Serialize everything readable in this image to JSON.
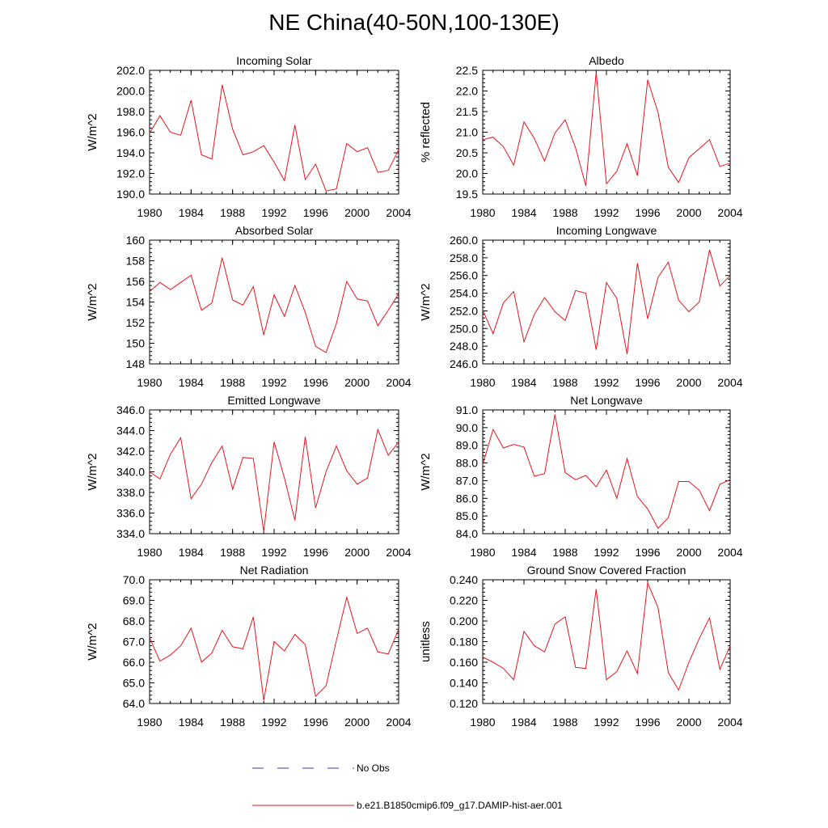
{
  "title": "NE China(40-50N,100-130E)",
  "legend": [
    {
      "label": "No Obs",
      "color": "#3a3ac8",
      "style": "dashed"
    },
    {
      "label": "b.e21.B1850cmip6.f09_g17.DAMIP-hist-aer.001",
      "color": "#e8141e",
      "style": "solid"
    }
  ],
  "chart_data": [
    {
      "type": "line",
      "title": "Incoming Solar",
      "xlabel": "",
      "ylabel": "W/m^2",
      "xlim": [
        1980,
        2004
      ],
      "ylim": [
        190,
        202
      ],
      "xticks": [
        "1980",
        "1984",
        "1988",
        "1992",
        "1996",
        "2000",
        "2004"
      ],
      "yticks": [
        "190.0",
        "192.0",
        "194.0",
        "196.0",
        "198.0",
        "200.0",
        "202.0"
      ],
      "x": [
        1980,
        1981,
        1982,
        1983,
        1984,
        1985,
        1986,
        1987,
        1988,
        1989,
        1990,
        1991,
        1992,
        1993,
        1994,
        1995,
        1996,
        1997,
        1998,
        1999,
        2000,
        2001,
        2002,
        2003,
        2004
      ],
      "series": [
        {
          "name": "b.e21.B1850cmip6.f09_g17.DAMIP-hist-aer.001",
          "values": [
            195.9,
            197.6,
            196.0,
            195.7,
            199.1,
            193.8,
            193.4,
            200.6,
            196.3,
            193.8,
            194.1,
            194.7,
            193.1,
            191.3,
            196.7,
            191.4,
            192.9,
            190.3,
            190.5,
            194.9,
            194.1,
            194.5,
            192.1,
            192.3,
            194.3
          ]
        }
      ]
    },
    {
      "type": "line",
      "title": "Albedo",
      "xlabel": "",
      "ylabel": "% reflected",
      "xlim": [
        1980,
        2004
      ],
      "ylim": [
        19.5,
        22.5
      ],
      "xticks": [
        "1980",
        "1984",
        "1988",
        "1992",
        "1996",
        "2000",
        "2004"
      ],
      "yticks": [
        "19.5",
        "20.0",
        "20.5",
        "21.0",
        "21.5",
        "22.0",
        "22.5"
      ],
      "x": [
        1980,
        1981,
        1982,
        1983,
        1984,
        1985,
        1986,
        1987,
        1988,
        1989,
        1990,
        1991,
        1992,
        1993,
        1994,
        1995,
        1996,
        1997,
        1998,
        1999,
        2000,
        2001,
        2002,
        2003,
        2004
      ],
      "series": [
        {
          "name": "b.e21.B1850cmip6.f09_g17.DAMIP-hist-aer.001",
          "values": [
            20.82,
            20.88,
            20.65,
            20.2,
            21.25,
            20.85,
            20.3,
            20.98,
            21.3,
            20.62,
            19.7,
            22.45,
            19.75,
            20.05,
            20.72,
            19.95,
            22.27,
            21.48,
            20.15,
            19.78,
            20.38,
            20.6,
            20.82,
            20.17,
            20.25
          ]
        }
      ]
    },
    {
      "type": "line",
      "title": "Absorbed Solar",
      "xlabel": "",
      "ylabel": "W/m^2",
      "xlim": [
        1980,
        2004
      ],
      "ylim": [
        148,
        160
      ],
      "xticks": [
        "1980",
        "1984",
        "1988",
        "1992",
        "1996",
        "2000",
        "2004"
      ],
      "yticks": [
        "148",
        "150",
        "152",
        "154",
        "156",
        "158",
        "160"
      ],
      "x": [
        1980,
        1981,
        1982,
        1983,
        1984,
        1985,
        1986,
        1987,
        1988,
        1989,
        1990,
        1991,
        1992,
        1993,
        1994,
        1995,
        1996,
        1997,
        1998,
        1999,
        2000,
        2001,
        2002,
        2003,
        2004
      ],
      "series": [
        {
          "name": "b.e21.B1850cmip6.f09_g17.DAMIP-hist-aer.001",
          "values": [
            155.0,
            155.9,
            155.2,
            155.9,
            156.6,
            153.2,
            153.9,
            158.3,
            154.2,
            153.7,
            155.5,
            150.8,
            154.7,
            152.6,
            155.6,
            153.0,
            149.7,
            149.1,
            151.9,
            156.0,
            154.3,
            154.1,
            151.7,
            153.2,
            154.8
          ]
        }
      ]
    },
    {
      "type": "line",
      "title": "Incoming Longwave",
      "xlabel": "",
      "ylabel": "W/m^2",
      "xlim": [
        1980,
        2004
      ],
      "ylim": [
        246,
        260
      ],
      "xticks": [
        "1980",
        "1984",
        "1988",
        "1992",
        "1996",
        "2000",
        "2004"
      ],
      "yticks": [
        "246.0",
        "248.0",
        "250.0",
        "252.0",
        "254.0",
        "256.0",
        "258.0",
        "260.0"
      ],
      "x": [
        1980,
        1981,
        1982,
        1983,
        1984,
        1985,
        1986,
        1987,
        1988,
        1989,
        1990,
        1991,
        1992,
        1993,
        1994,
        1995,
        1996,
        1997,
        1998,
        1999,
        2000,
        2001,
        2002,
        2003,
        2004
      ],
      "series": [
        {
          "name": "b.e21.B1850cmip6.f09_g17.DAMIP-hist-aer.001",
          "values": [
            252.1,
            249.4,
            252.9,
            254.2,
            248.5,
            251.6,
            253.5,
            251.9,
            250.9,
            254.3,
            254.0,
            247.6,
            255.2,
            253.4,
            247.1,
            257.4,
            251.1,
            255.8,
            257.5,
            253.2,
            251.9,
            253.0,
            258.9,
            254.8,
            256.0
          ]
        }
      ]
    },
    {
      "type": "line",
      "title": "Emitted Longwave",
      "xlabel": "",
      "ylabel": "W/m^2",
      "xlim": [
        1980,
        2004
      ],
      "ylim": [
        334,
        346
      ],
      "xticks": [
        "1980",
        "1984",
        "1988",
        "1992",
        "1996",
        "2000",
        "2004"
      ],
      "yticks": [
        "334.0",
        "336.0",
        "338.0",
        "340.0",
        "342.0",
        "344.0",
        "346.0"
      ],
      "x": [
        1980,
        1981,
        1982,
        1983,
        1984,
        1985,
        1986,
        1987,
        1988,
        1989,
        1990,
        1991,
        1992,
        1993,
        1994,
        1995,
        1996,
        1997,
        1998,
        1999,
        2000,
        2001,
        2002,
        2003,
        2004
      ],
      "series": [
        {
          "name": "b.e21.B1850cmip6.f09_g17.DAMIP-hist-aer.001",
          "values": [
            340.0,
            339.3,
            341.7,
            343.3,
            337.4,
            338.8,
            340.9,
            342.5,
            338.3,
            341.4,
            341.3,
            334.2,
            342.9,
            339.4,
            335.3,
            343.4,
            336.5,
            340.0,
            342.5,
            340.1,
            338.8,
            339.4,
            344.1,
            341.6,
            342.9
          ]
        }
      ]
    },
    {
      "type": "line",
      "title": "Net Longwave",
      "xlabel": "",
      "ylabel": "W/m^2",
      "xlim": [
        1980,
        2004
      ],
      "ylim": [
        84,
        91
      ],
      "xticks": [
        "1980",
        "1984",
        "1988",
        "1992",
        "1996",
        "2000",
        "2004"
      ],
      "yticks": [
        "84.0",
        "85.0",
        "86.0",
        "87.0",
        "88.0",
        "89.0",
        "90.0",
        "91.0"
      ],
      "x": [
        1980,
        1981,
        1982,
        1983,
        1984,
        1985,
        1986,
        1987,
        1988,
        1989,
        1990,
        1991,
        1992,
        1993,
        1994,
        1995,
        1996,
        1997,
        1998,
        1999,
        2000,
        2001,
        2002,
        2003,
        2004
      ],
      "series": [
        {
          "name": "b.e21.B1850cmip6.f09_g17.DAMIP-hist-aer.001",
          "values": [
            87.9,
            89.9,
            88.85,
            89.05,
            88.9,
            87.25,
            87.4,
            90.75,
            87.45,
            87.05,
            87.3,
            86.65,
            87.6,
            86.0,
            88.25,
            86.1,
            85.4,
            84.3,
            84.9,
            86.95,
            86.95,
            86.45,
            85.3,
            86.8,
            87.05
          ]
        }
      ]
    },
    {
      "type": "line",
      "title": "Net Radiation",
      "xlabel": "",
      "ylabel": "W/m^2",
      "xlim": [
        1980,
        2004
      ],
      "ylim": [
        64,
        70
      ],
      "xticks": [
        "1980",
        "1984",
        "1988",
        "1992",
        "1996",
        "2000",
        "2004"
      ],
      "yticks": [
        "64.0",
        "65.0",
        "66.0",
        "67.0",
        "68.0",
        "69.0",
        "70.0"
      ],
      "x": [
        1980,
        1981,
        1982,
        1983,
        1984,
        1985,
        1986,
        1987,
        1988,
        1989,
        1990,
        1991,
        1992,
        1993,
        1994,
        1995,
        1996,
        1997,
        1998,
        1999,
        2000,
        2001,
        2002,
        2003,
        2004
      ],
      "series": [
        {
          "name": "b.e21.B1850cmip6.f09_g17.DAMIP-hist-aer.001",
          "values": [
            67.2,
            66.05,
            66.35,
            66.8,
            67.65,
            66.0,
            66.45,
            67.55,
            66.75,
            66.65,
            68.2,
            64.15,
            67.0,
            66.55,
            67.35,
            66.85,
            64.35,
            64.85,
            67.05,
            69.15,
            67.4,
            67.65,
            66.5,
            66.4,
            67.6
          ]
        }
      ]
    },
    {
      "type": "line",
      "title": "Ground Snow Covered Fraction",
      "xlabel": "",
      "ylabel": "unitless",
      "xlim": [
        1980,
        2004
      ],
      "ylim": [
        0.12,
        0.24
      ],
      "xticks": [
        "1980",
        "1984",
        "1988",
        "1992",
        "1996",
        "2000",
        "2004"
      ],
      "yticks": [
        "0.120",
        "0.140",
        "0.160",
        "0.180",
        "0.200",
        "0.220",
        "0.240"
      ],
      "x": [
        1980,
        1981,
        1982,
        1983,
        1984,
        1985,
        1986,
        1987,
        1988,
        1989,
        1990,
        1991,
        1992,
        1993,
        1994,
        1995,
        1996,
        1997,
        1998,
        1999,
        2000,
        2001,
        2002,
        2003,
        2004
      ],
      "series": [
        {
          "name": "b.e21.B1850cmip6.f09_g17.DAMIP-hist-aer.001",
          "values": [
            0.165,
            0.16,
            0.154,
            0.143,
            0.19,
            0.176,
            0.17,
            0.197,
            0.204,
            0.155,
            0.154,
            0.231,
            0.143,
            0.151,
            0.171,
            0.149,
            0.237,
            0.213,
            0.15,
            0.133,
            0.16,
            0.183,
            0.203,
            0.153,
            0.176
          ]
        }
      ]
    }
  ]
}
